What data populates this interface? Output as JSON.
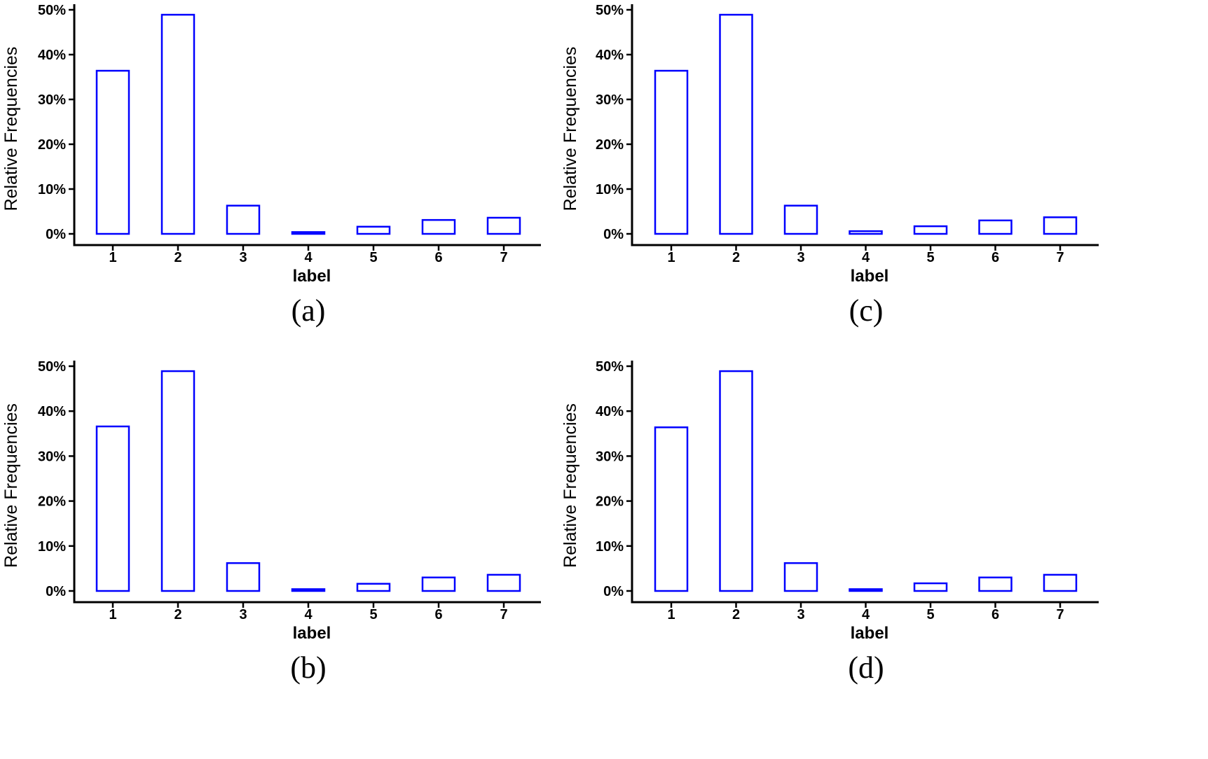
{
  "figure": {
    "background": "#ffffff",
    "bar_color": "#0000ff",
    "axis_color": "#000000"
  },
  "chart_data": [
    {
      "panel": "a",
      "type": "bar",
      "caption": "(a)",
      "categories": [
        "1",
        "2",
        "3",
        "4",
        "5",
        "6",
        "7"
      ],
      "values": [
        36.4,
        48.9,
        6.3,
        0.4,
        1.6,
        3.1,
        3.6
      ],
      "ylim": [
        0,
        50
      ],
      "yticks": [
        0,
        10,
        20,
        30,
        40,
        50
      ],
      "ytick_labels": [
        "0%",
        "10%",
        "20%",
        "30%",
        "40%",
        "50%"
      ],
      "xlabel": "label",
      "ylabel": "Relative Frequencies",
      "grid": false
    },
    {
      "panel": "c",
      "type": "bar",
      "caption": "(c)",
      "categories": [
        "1",
        "2",
        "3",
        "4",
        "5",
        "6",
        "7"
      ],
      "values": [
        36.4,
        48.9,
        6.3,
        0.6,
        1.7,
        3.0,
        3.7
      ],
      "ylim": [
        0,
        50
      ],
      "yticks": [
        0,
        10,
        20,
        30,
        40,
        50
      ],
      "ytick_labels": [
        "0%",
        "10%",
        "20%",
        "30%",
        "40%",
        "50%"
      ],
      "xlabel": "label",
      "ylabel": "Relative Frequencies",
      "grid": false
    },
    {
      "panel": "b",
      "type": "bar",
      "caption": "(b)",
      "categories": [
        "1",
        "2",
        "3",
        "4",
        "5",
        "6",
        "7"
      ],
      "values": [
        36.6,
        48.9,
        6.2,
        0.4,
        1.6,
        3.0,
        3.6
      ],
      "ylim": [
        0,
        50
      ],
      "yticks": [
        0,
        10,
        20,
        30,
        40,
        50
      ],
      "ytick_labels": [
        "0%",
        "10%",
        "20%",
        "30%",
        "40%",
        "50%"
      ],
      "xlabel": "label",
      "ylabel": "Relative Frequencies",
      "grid": false
    },
    {
      "panel": "d",
      "type": "bar",
      "caption": "(d)",
      "categories": [
        "1",
        "2",
        "3",
        "4",
        "5",
        "6",
        "7"
      ],
      "values": [
        36.4,
        48.9,
        6.2,
        0.4,
        1.7,
        3.0,
        3.6
      ],
      "ylim": [
        0,
        50
      ],
      "yticks": [
        0,
        10,
        20,
        30,
        40,
        50
      ],
      "ytick_labels": [
        "0%",
        "10%",
        "20%",
        "30%",
        "40%",
        "50%"
      ],
      "xlabel": "label",
      "ylabel": "Relative Frequencies",
      "grid": false
    }
  ]
}
